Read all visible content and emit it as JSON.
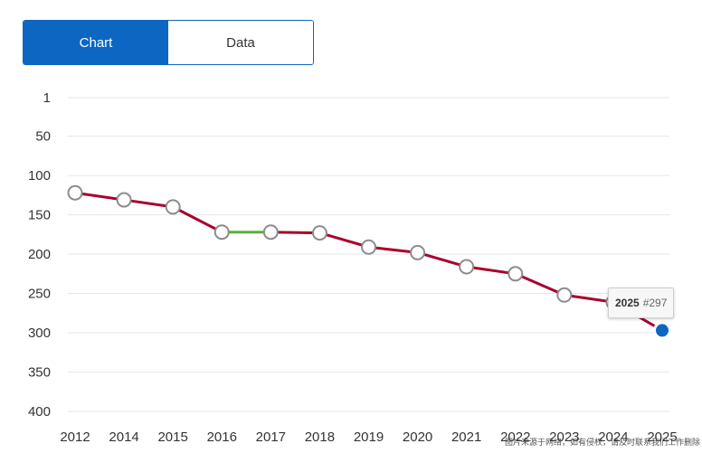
{
  "tabs": {
    "chart_label": "Chart",
    "data_label": "Data",
    "active": "chart"
  },
  "chart_data": {
    "type": "line",
    "title": "",
    "xlabel": "",
    "ylabel": "",
    "y_reversed": true,
    "ylim": [
      1,
      400
    ],
    "y_ticks": [
      1,
      50,
      100,
      150,
      200,
      250,
      300,
      350,
      400
    ],
    "categories": [
      "2012",
      "2014",
      "2015",
      "2016",
      "2017",
      "2018",
      "2019",
      "2020",
      "2021",
      "2022",
      "2023",
      "2024",
      "2025"
    ],
    "series": [
      {
        "values": [
          122,
          131,
          140,
          172,
          172,
          173,
          191,
          198,
          216,
          225,
          252,
          261,
          297
        ]
      }
    ],
    "line_color": "#a8002e",
    "flat_segment_color": "#55b33b",
    "highlight_color": "#0d66c2",
    "grid": true,
    "tooltip": {
      "year": "2025",
      "rank": "#297"
    }
  },
  "watermark": "图片来源于网络，如有侵权，请及时联系我们工作删除"
}
